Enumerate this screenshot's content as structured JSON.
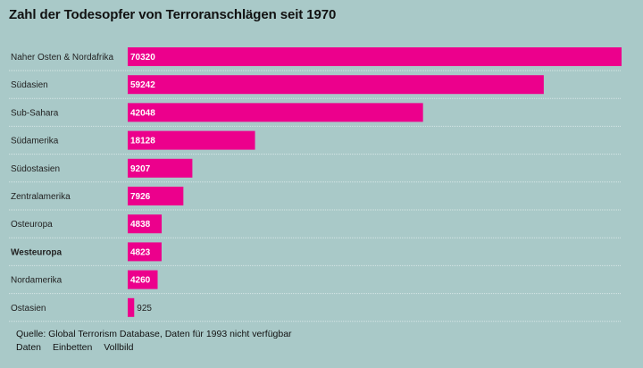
{
  "header": {
    "title": "Zahl der Todesopfer von Terroranschlägen seit 1970"
  },
  "footer": {
    "source": "Quelle: Global Terrorism Database, Daten für 1993 nicht verfügbar",
    "links": [
      "Daten",
      "Einbetten",
      "Vollbild"
    ]
  },
  "colors": {
    "background": "#a9c9c8",
    "bar": "#ec008c",
    "gridline": "#d6e6e5",
    "label_inside": "#ffffff",
    "label_outside": "#222222"
  },
  "chart_data": {
    "type": "bar",
    "orientation": "horizontal",
    "title": "Zahl der Todesopfer von Terroranschlägen seit 1970",
    "categories": [
      "Naher Osten & Nordafrika",
      "Südasien",
      "Sub-Sahara",
      "Südamerika",
      "Südostasien",
      "Zentralamerika",
      "Osteuropa",
      "Westeuropa",
      "Nordamerika",
      "Ostasien"
    ],
    "values": [
      70320,
      59242,
      42048,
      18128,
      9207,
      7926,
      4838,
      4823,
      4260,
      925
    ],
    "highlighted_category": "Westeuropa",
    "xlim": [
      0,
      70320
    ],
    "grid": false,
    "data_labels": true
  }
}
